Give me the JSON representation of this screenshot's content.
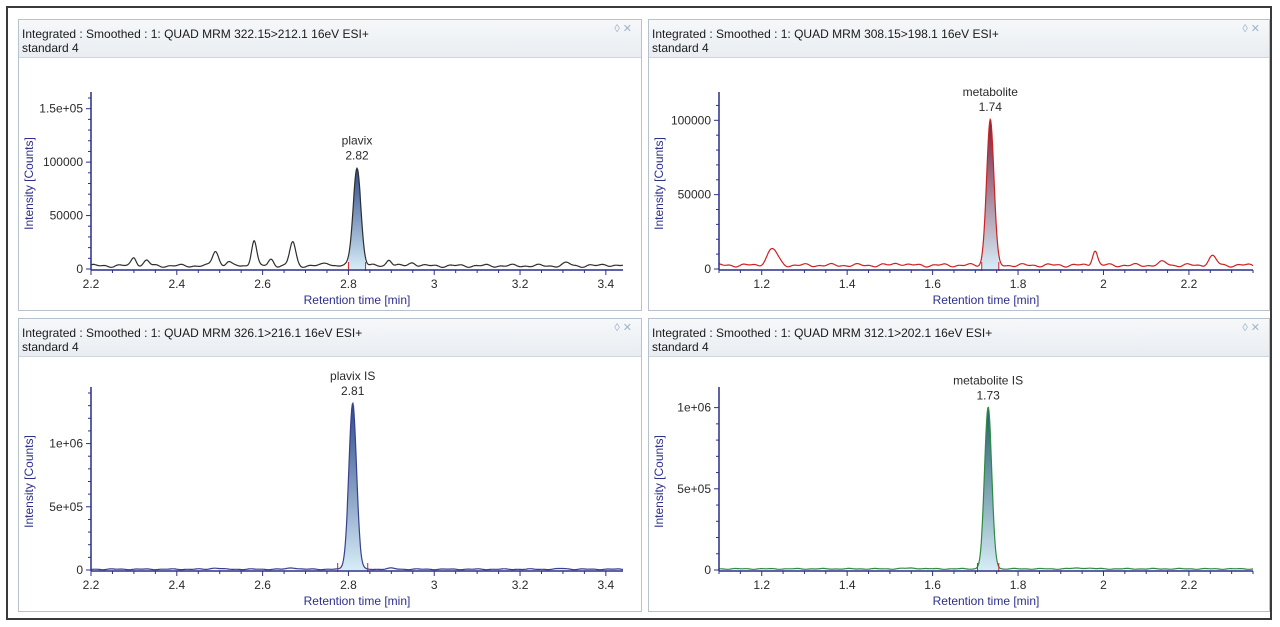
{
  "chart_data": [
    {
      "type": "line",
      "title": "Integrated : Smoothed :  1: QUAD MRM 322.15>212.1 16eV ESI+",
      "subtitle": "standard 4",
      "xlabel": "Retention time [min]",
      "ylabel": "Intensity [Counts]",
      "xlim": [
        2.2,
        3.44
      ],
      "ylim": [
        0,
        160000
      ],
      "xticks": [
        2.2,
        2.4,
        2.6,
        2.8,
        3,
        3.2,
        3.4
      ],
      "xtick_labels": [
        "2.2",
        "2.4",
        "2.6",
        "2.8",
        "3",
        "3.2",
        "3.4"
      ],
      "yticks": [
        0,
        50000,
        100000,
        150000
      ],
      "ytick_labels": [
        "0",
        "50000",
        "100000",
        "1.5e+05"
      ],
      "line_color": "#2e2e2e",
      "fill_color": "#2c4a8a",
      "baseline": 3000,
      "noise": 1500,
      "peaks": [
        [
          2.3,
          8000,
          0.006
        ],
        [
          2.33,
          5000,
          0.006
        ],
        [
          2.49,
          14000,
          0.007
        ],
        [
          2.52,
          4000,
          0.006
        ],
        [
          2.58,
          24000,
          0.006
        ],
        [
          2.62,
          6000,
          0.006
        ],
        [
          2.67,
          22000,
          0.007
        ],
        [
          2.75,
          3000,
          0.008
        ],
        [
          2.895,
          6000,
          0.006
        ],
        [
          2.95,
          3000,
          0.008
        ],
        [
          3.31,
          2500,
          0.008
        ],
        [
          3.4,
          1500,
          0.008
        ]
      ],
      "main_peak": {
        "label": "plavix",
        "rt": "2.82",
        "x": 2.82,
        "y": 95000,
        "width": 0.009,
        "int_start": 2.8,
        "int_end": 2.84
      }
    },
    {
      "type": "line",
      "title": "Integrated : Smoothed :  1: QUAD MRM 308.15>198.1 16eV ESI+",
      "subtitle": "standard 4",
      "xlabel": "Retention time [min]",
      "ylabel": "Intensity [Counts]",
      "xlim": [
        1.1,
        2.35
      ],
      "ylim": [
        0,
        115000
      ],
      "xticks": [
        1.2,
        1.4,
        1.6,
        1.8,
        2,
        2.2
      ],
      "xtick_labels": [
        "1.2",
        "1.4",
        "1.6",
        "1.8",
        "2",
        "2.2"
      ],
      "yticks": [
        0,
        50000,
        100000
      ],
      "ytick_labels": [
        "0",
        "50000",
        "100000"
      ],
      "line_color": "#cc2222",
      "fill_color": "#7a1f3a",
      "baseline": 2500,
      "noise": 1200,
      "peaks": [
        [
          1.225,
          11000,
          0.012
        ],
        [
          1.52,
          1500,
          0.01
        ],
        [
          1.98,
          10000,
          0.006
        ],
        [
          2.14,
          2000,
          0.01
        ],
        [
          2.255,
          6000,
          0.009
        ]
      ],
      "main_peak": {
        "label": "metabolite",
        "rt": "1.74",
        "x": 1.735,
        "y": 101000,
        "width": 0.0085,
        "int_start": 1.715,
        "int_end": 1.755
      }
    },
    {
      "type": "line",
      "title": "Integrated : Smoothed :  1: QUAD MRM 326.1>216.1 16eV ESI+",
      "subtitle": "standard 4",
      "xlabel": "Retention time [min]",
      "ylabel": "Intensity [Counts]",
      "xlim": [
        2.2,
        3.44
      ],
      "ylim": [
        0,
        1400000
      ],
      "xticks": [
        2.2,
        2.4,
        2.6,
        2.8,
        3,
        3.2,
        3.4
      ],
      "xtick_labels": [
        "2.2",
        "2.4",
        "2.6",
        "2.8",
        "3",
        "3.2",
        "3.4"
      ],
      "yticks": [
        0,
        500000,
        1000000
      ],
      "ytick_labels": [
        "0",
        "5e+05",
        "1e+06"
      ],
      "line_color": "#3a3f8f",
      "fill_color": "#2c4a8a",
      "baseline": 6000,
      "noise": 4000,
      "peaks": [
        [
          2.49,
          10000,
          0.01
        ],
        [
          2.67,
          12000,
          0.01
        ],
        [
          2.9,
          7000,
          0.01
        ],
        [
          3.3,
          6000,
          0.01
        ]
      ],
      "main_peak": {
        "label": "plavix IS",
        "rt": "2.81",
        "x": 2.81,
        "y": 1320000,
        "width": 0.009,
        "int_start": 2.775,
        "int_end": 2.845
      }
    },
    {
      "type": "line",
      "title": "Integrated : Smoothed :  1: QUAD MRM 312.1>202.1 16eV ESI+",
      "subtitle": "standard 4",
      "xlabel": "Retention time [min]",
      "ylabel": "Intensity [Counts]",
      "xlim": [
        1.1,
        2.35
      ],
      "ylim": [
        0,
        1090000
      ],
      "xticks": [
        1.2,
        1.4,
        1.6,
        1.8,
        2,
        2.2
      ],
      "xtick_labels": [
        "1.2",
        "1.4",
        "1.6",
        "1.8",
        "2",
        "2.2"
      ],
      "yticks": [
        0,
        500000,
        1000000
      ],
      "ytick_labels": [
        "0",
        "5e+05",
        "1e+06"
      ],
      "line_color": "#2e8b40",
      "fill_color": "#1f5a6a",
      "baseline": 7000,
      "noise": 3000,
      "peaks": [
        [
          1.55,
          4000,
          0.02
        ],
        [
          1.95,
          5000,
          0.02
        ]
      ],
      "main_peak": {
        "label": "metabolite IS",
        "rt": "1.73",
        "x": 1.73,
        "y": 1000000,
        "width": 0.0085,
        "int_start": 1.705,
        "int_end": 1.755
      }
    }
  ]
}
